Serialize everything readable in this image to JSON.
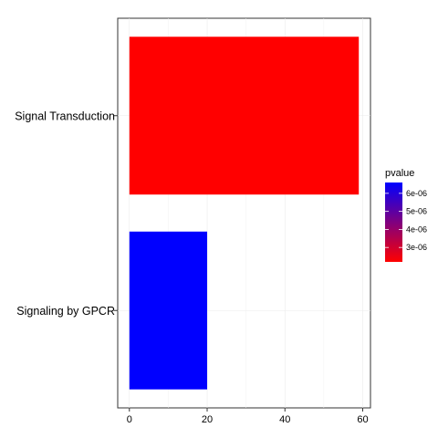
{
  "chart_data": {
    "type": "bar",
    "orientation": "horizontal",
    "categories": [
      "Signal Transduction",
      "Signaling by GPCR"
    ],
    "values": [
      59,
      20
    ],
    "pvalues": [
      2.2e-06,
      6.6e-06
    ],
    "xlim": [
      -3,
      62
    ],
    "xticks": [
      0,
      20,
      40,
      60
    ],
    "xtick_labels": [
      "0",
      "20",
      "40",
      "60"
    ],
    "grid": true,
    "legend": {
      "title": "pvalue",
      "position": "right",
      "low": 2.2e-06,
      "high": 6.6e-06,
      "low_color": "#ff0000",
      "high_color": "#0000ff",
      "ticks": [
        3e-06,
        4e-06,
        5e-06,
        6e-06
      ],
      "tick_labels": [
        "3e-06",
        "4e-06",
        "5e-06",
        "6e-06"
      ]
    }
  }
}
